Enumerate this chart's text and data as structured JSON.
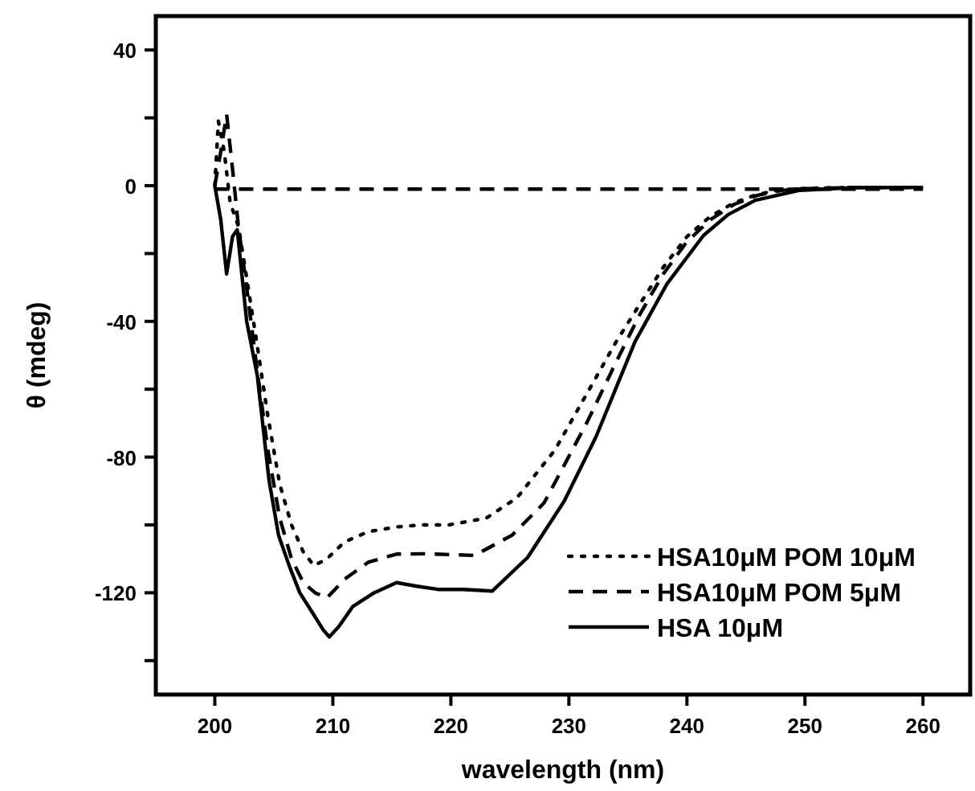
{
  "chart_data": {
    "type": "line",
    "xlabel": "wavelength (nm)",
    "ylabel": "θ (mdeg)",
    "xlim": [
      195,
      264
    ],
    "ylim": [
      -150,
      50
    ],
    "xticks": [
      200,
      210,
      220,
      230,
      240,
      250,
      260
    ],
    "yticks": [
      40,
      {
        "value": 20,
        "label": null
      },
      0,
      {
        "value": -20,
        "label": null
      },
      -40,
      {
        "value": -60,
        "label": null
      },
      -80,
      {
        "value": -100,
        "label": null
      },
      -120,
      {
        "value": -140,
        "label": null
      }
    ],
    "legend": "bottom right",
    "grid": false,
    "series": [
      {
        "name": "HSA10μM POM 10μM",
        "color": "#000000",
        "line_style": "dotted",
        "x": [
          200,
          200.3,
          200.8,
          201.3,
          202,
          202.6,
          203.5,
          204.5,
          205.5,
          206.5,
          207.5,
          208.4,
          209.5,
          211,
          213,
          215.4,
          217.5,
          219.8,
          223,
          225.6,
          228.8,
          231.9,
          234,
          236,
          238,
          240,
          242,
          244,
          246,
          248,
          250,
          254,
          260
        ],
        "values": [
          0,
          19,
          10,
          -5,
          -12,
          -25,
          -45,
          -68,
          -88,
          -100,
          -108,
          -112,
          -110,
          -105,
          -102,
          -100.6,
          -100,
          -100,
          -98,
          -92,
          -78,
          -59,
          -46,
          -35,
          -24,
          -15,
          -9,
          -5,
          -2.5,
          -1.2,
          -0.8,
          -0.5,
          -0.5
        ]
      },
      {
        "name": "HSA10μM POM 5μM",
        "color": "#000000",
        "line_style": "dashed",
        "x": [
          200,
          200.5,
          201,
          201.5,
          202,
          202.7,
          203.5,
          204.5,
          205.5,
          206.5,
          207.5,
          208.5,
          209.5,
          211,
          213,
          215.4,
          218,
          222,
          225.2,
          227.9,
          231.5,
          234,
          236,
          238,
          240,
          242,
          244,
          246,
          248,
          250,
          254,
          260
        ],
        "values": [
          0,
          10,
          21,
          5,
          -12,
          -30,
          -52,
          -78,
          -98,
          -110,
          -117,
          -120,
          -121.5,
          -116,
          -111,
          -108.6,
          -108.5,
          -109,
          -103,
          -93.5,
          -70,
          -52,
          -38,
          -26,
          -16.5,
          -10,
          -5.5,
          -2.8,
          -1.4,
          -0.9,
          -0.5,
          -0.5
        ]
      },
      {
        "name": "HSA 10μM",
        "color": "#000000",
        "line_style": "solid",
        "x": [
          200,
          200.5,
          201,
          201.5,
          201.9,
          202.7,
          203.6,
          204.6,
          205.4,
          206.3,
          207.2,
          208.3,
          209.2,
          209.7,
          210.5,
          211.7,
          213.5,
          215.4,
          217,
          218.9,
          221,
          223.5,
          226.5,
          229.6,
          232.3,
          235.6,
          238.3,
          241.4,
          243.5,
          245.8,
          249.5,
          254,
          260
        ],
        "values": [
          0,
          -10,
          -26,
          -15,
          -13,
          -40,
          -56,
          -87,
          -103,
          -112,
          -120,
          -126,
          -131,
          -133,
          -130,
          -124,
          -120,
          -117,
          -118,
          -119,
          -119,
          -119.5,
          -109.6,
          -93,
          -74,
          -46,
          -29,
          -14.7,
          -8.5,
          -4.3,
          -1.4,
          -0.6,
          -0.5
        ]
      },
      {
        "color": "#000000",
        "line_style": "dashed",
        "x": [
          200,
          260
        ],
        "values": [
          -1,
          -1
        ]
      }
    ]
  }
}
